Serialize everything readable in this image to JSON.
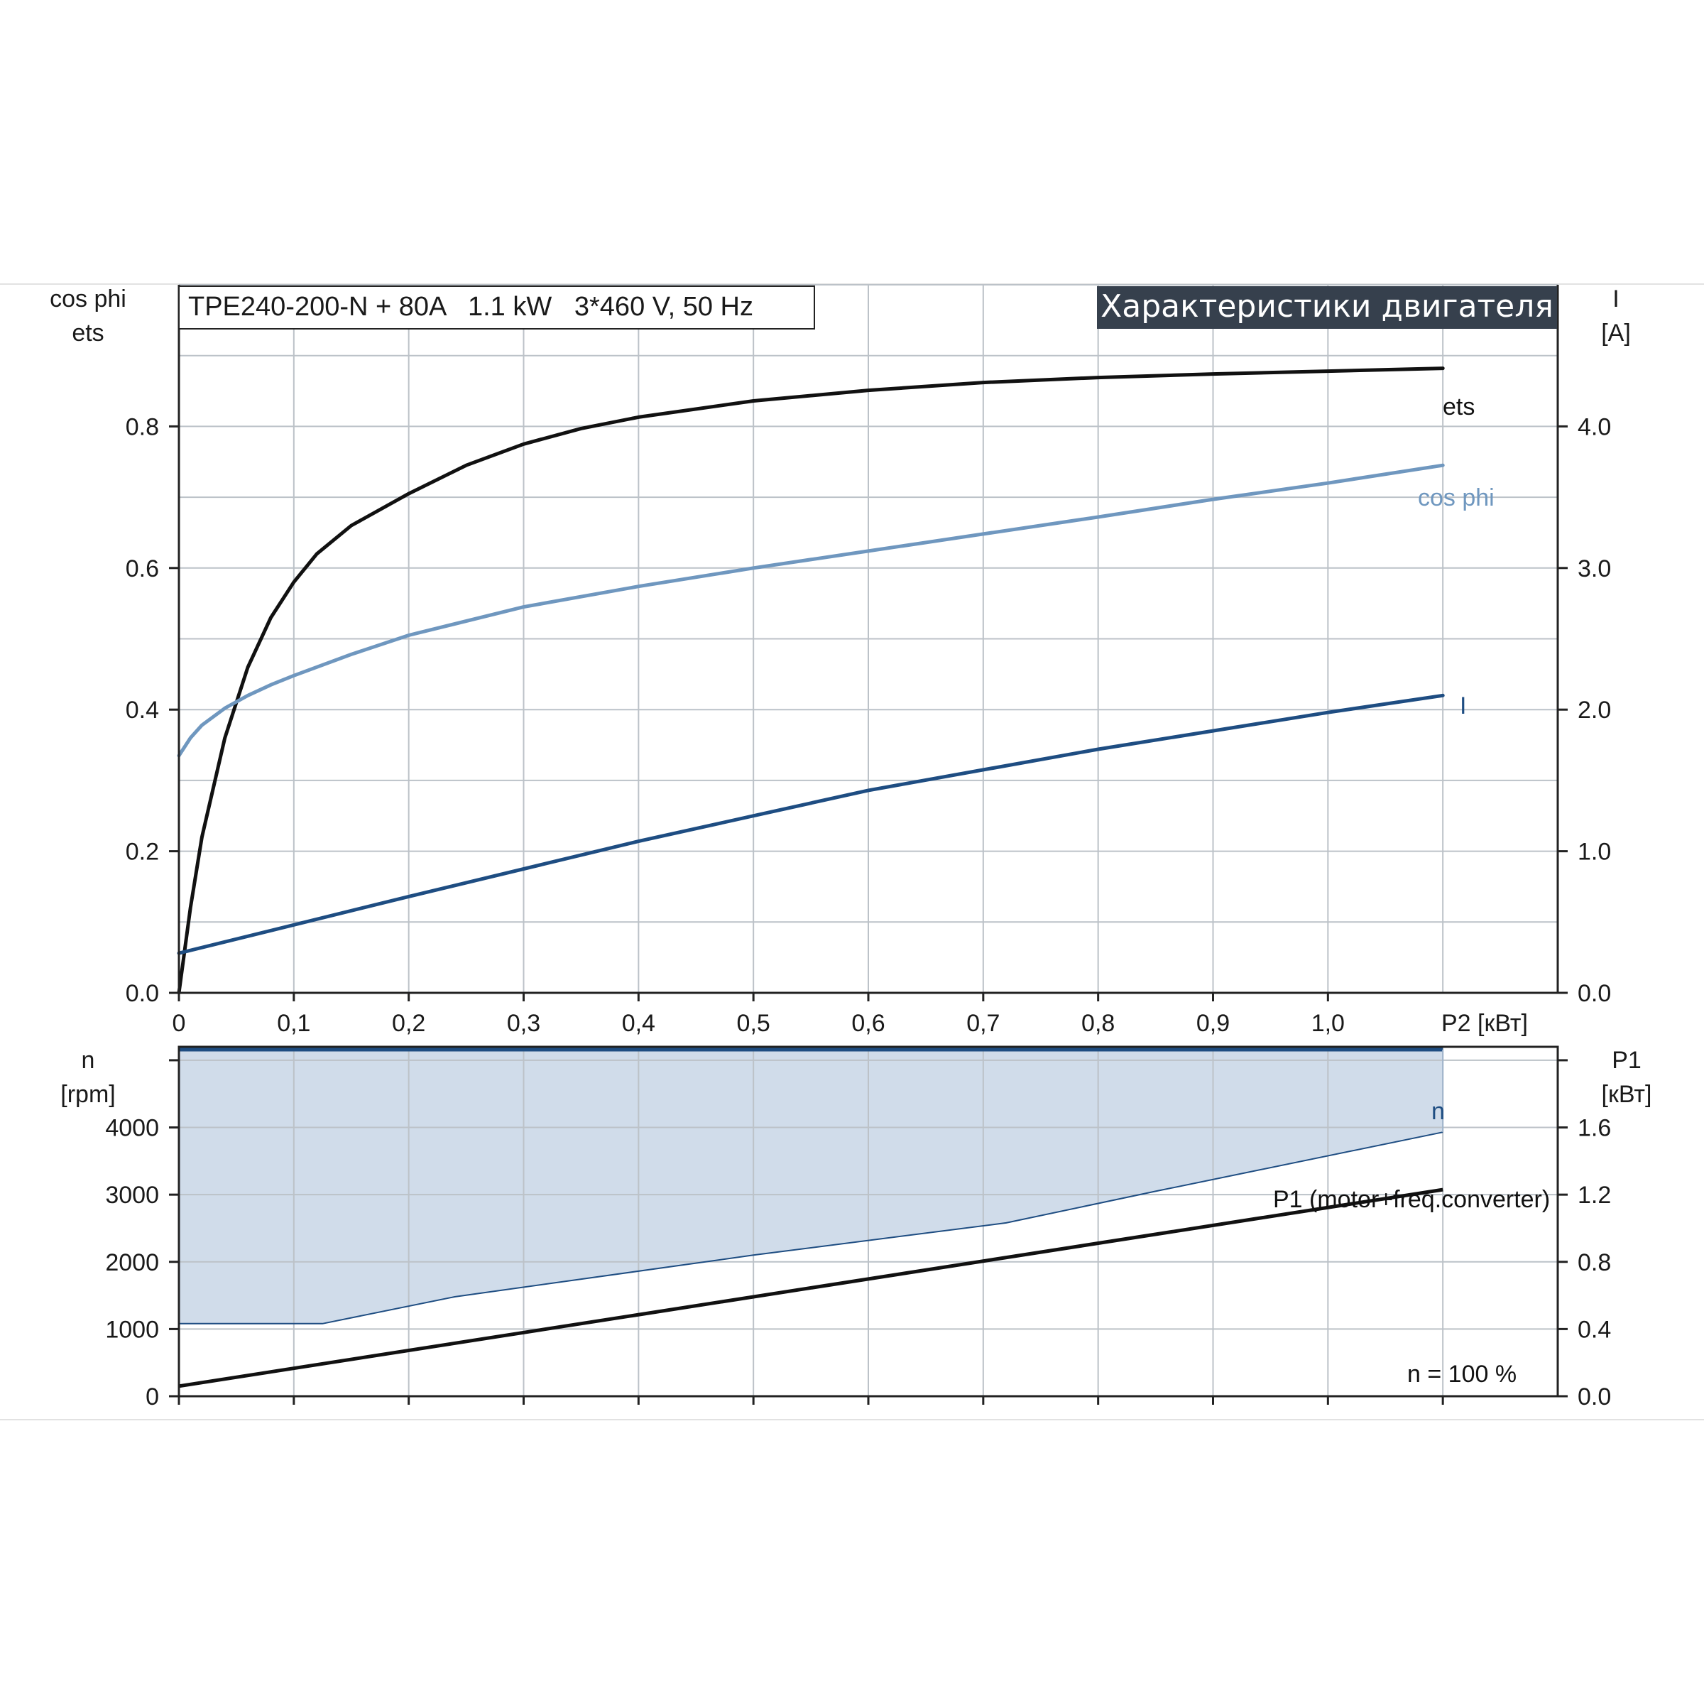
{
  "header": {
    "model_info": "TPE240-200-N + 80A   1.1 kW   3*460 V, 50 Hz",
    "banner": "Характеристики двигателя"
  },
  "colors": {
    "ets": "#111111",
    "cos_phi": "#6f97bf",
    "current": "#1e4d82",
    "speed": "#1e4d82",
    "speed_fill": "#d0dcea",
    "p1": "#111111",
    "banner_bg": "#36404d",
    "grid": "#bcc2c8"
  },
  "chart_data": [
    {
      "type": "line",
      "name": "upper",
      "xlabel": "P2 [кВт]",
      "ylabel_left": [
        "cos phi",
        "ets"
      ],
      "ylabel_right": [
        "I",
        "[A]"
      ],
      "xlim": [
        0,
        1.2
      ],
      "ylim_left": [
        0,
        1.0
      ],
      "ylim_right": [
        0,
        5.0
      ],
      "x_ticks": [
        "0",
        "0,1",
        "0,2",
        "0,3",
        "0,4",
        "0,5",
        "0,6",
        "0,7",
        "0,8",
        "0,9",
        "1,0"
      ],
      "y_ticks_left": [
        "0.0",
        "0.2",
        "0.4",
        "0.6",
        "0.8"
      ],
      "y_ticks_right": [
        "0.0",
        "1.0",
        "2.0",
        "3.0",
        "4.0"
      ],
      "grid": true,
      "series": [
        {
          "name": "ets",
          "axis": "left",
          "x": [
            0,
            0.01,
            0.02,
            0.04,
            0.06,
            0.08,
            0.1,
            0.12,
            0.15,
            0.2,
            0.25,
            0.3,
            0.35,
            0.4,
            0.5,
            0.6,
            0.7,
            0.8,
            0.9,
            1.0,
            1.1
          ],
          "y": [
            0,
            0.12,
            0.22,
            0.36,
            0.46,
            0.53,
            0.58,
            0.62,
            0.66,
            0.705,
            0.745,
            0.775,
            0.797,
            0.813,
            0.836,
            0.851,
            0.862,
            0.869,
            0.874,
            0.878,
            0.882
          ]
        },
        {
          "name": "cos phi",
          "axis": "left",
          "x": [
            0,
            0.01,
            0.02,
            0.04,
            0.06,
            0.08,
            0.1,
            0.15,
            0.2,
            0.3,
            0.4,
            0.5,
            0.6,
            0.7,
            0.8,
            0.9,
            1.0,
            1.1
          ],
          "y": [
            0.335,
            0.36,
            0.378,
            0.402,
            0.42,
            0.435,
            0.448,
            0.478,
            0.505,
            0.545,
            0.574,
            0.6,
            0.624,
            0.648,
            0.672,
            0.697,
            0.72,
            0.745
          ]
        },
        {
          "name": "I",
          "axis": "right",
          "x": [
            0,
            0.2,
            0.4,
            0.6,
            0.8,
            1.0,
            1.1
          ],
          "y": [
            0.28,
            0.68,
            1.07,
            1.43,
            1.72,
            1.98,
            2.1
          ]
        }
      ]
    },
    {
      "type": "line",
      "name": "lower",
      "ylabel_left": [
        "n",
        "[rpm]"
      ],
      "ylabel_right": [
        "P1",
        "[кВт]"
      ],
      "xlim": [
        0,
        1.2
      ],
      "ylim_left": [
        0,
        5200
      ],
      "ylim_right": [
        0,
        2.08
      ],
      "y_ticks_left": [
        "0",
        "1000",
        "2000",
        "3000",
        "4000"
      ],
      "y_ticks_right": [
        "0.0",
        "0.4",
        "0.8",
        "1.2",
        "1.6"
      ],
      "grid": true,
      "annotation": "n = 100 %",
      "series": [
        {
          "name": "n",
          "axis": "left",
          "x": [
            0,
            1.1
          ],
          "y": [
            5300,
            5300
          ]
        },
        {
          "name": "n min",
          "axis": "left",
          "x": [
            0,
            0.125,
            0.24,
            0.5,
            0.72,
            0.85,
            1.1
          ],
          "y": [
            1080,
            1080,
            1480,
            2100,
            2580,
            3050,
            3930
          ]
        },
        {
          "name": "P1 (motor+freq.converter)",
          "axis": "right",
          "x": [
            0,
            1.1
          ],
          "y": [
            0.06,
            1.23
          ]
        }
      ]
    }
  ]
}
